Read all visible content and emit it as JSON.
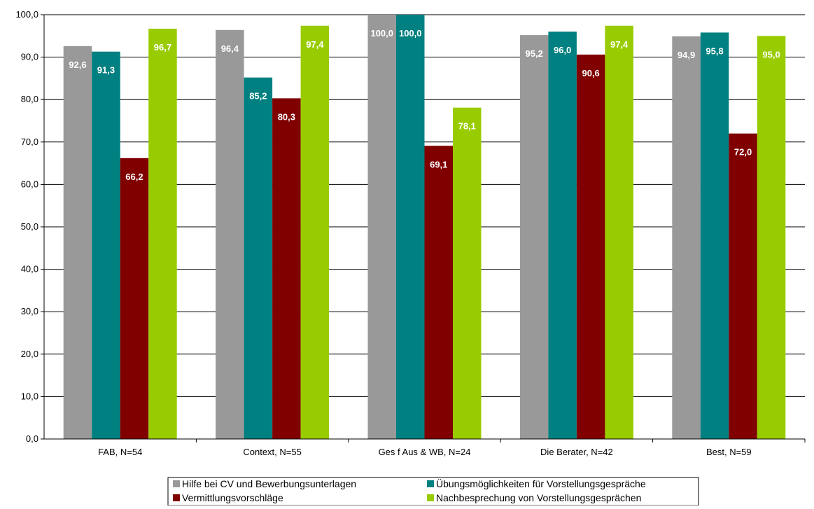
{
  "chart_data": {
    "type": "bar",
    "categories": [
      "FAB, N=54",
      "Context, N=55",
      "Ges f Aus & WB, N=24",
      "Die Berater, N=42",
      "Best, N=59"
    ],
    "series": [
      {
        "name": "Hilfe bei CV und Bewerbungsunterlagen",
        "color": "#999999",
        "values": [
          92.6,
          96.4,
          100.0,
          95.2,
          94.9
        ],
        "labels": [
          "92,6",
          "96,4",
          "100,0",
          "95,2",
          "94,9"
        ]
      },
      {
        "name": "Übungsmöglichkeiten für Vorstellungsgespräche",
        "color": "#008080",
        "values": [
          91.3,
          85.2,
          100.0,
          96.0,
          95.8
        ],
        "labels": [
          "91,3",
          "85,2",
          "100,0",
          "96,0",
          "95,8"
        ]
      },
      {
        "name": "Vermittlungsvorschläge",
        "color": "#800000",
        "values": [
          66.2,
          80.3,
          69.1,
          90.6,
          72.0
        ],
        "labels": [
          "66,2",
          "80,3",
          "69,1",
          "90,6",
          "72,0"
        ]
      },
      {
        "name": "Nachbesprechung von Vorstellungsgesprächen",
        "color": "#99CC00",
        "values": [
          96.7,
          97.4,
          78.1,
          97.4,
          95.0
        ],
        "labels": [
          "96,7",
          "97,4",
          "78,1",
          "97,4",
          "95,0"
        ]
      }
    ],
    "ylim": [
      0,
      100
    ],
    "yticks": [
      0,
      10,
      20,
      30,
      40,
      50,
      60,
      70,
      80,
      90,
      100
    ],
    "ytick_labels": [
      "0,0",
      "10,0",
      "20,0",
      "30,0",
      "40,0",
      "50,0",
      "60,0",
      "70,0",
      "80,0",
      "90,0",
      "100,0"
    ],
    "title": "",
    "xlabel": "",
    "ylabel": "",
    "grid": true,
    "legend_position": "bottom"
  }
}
